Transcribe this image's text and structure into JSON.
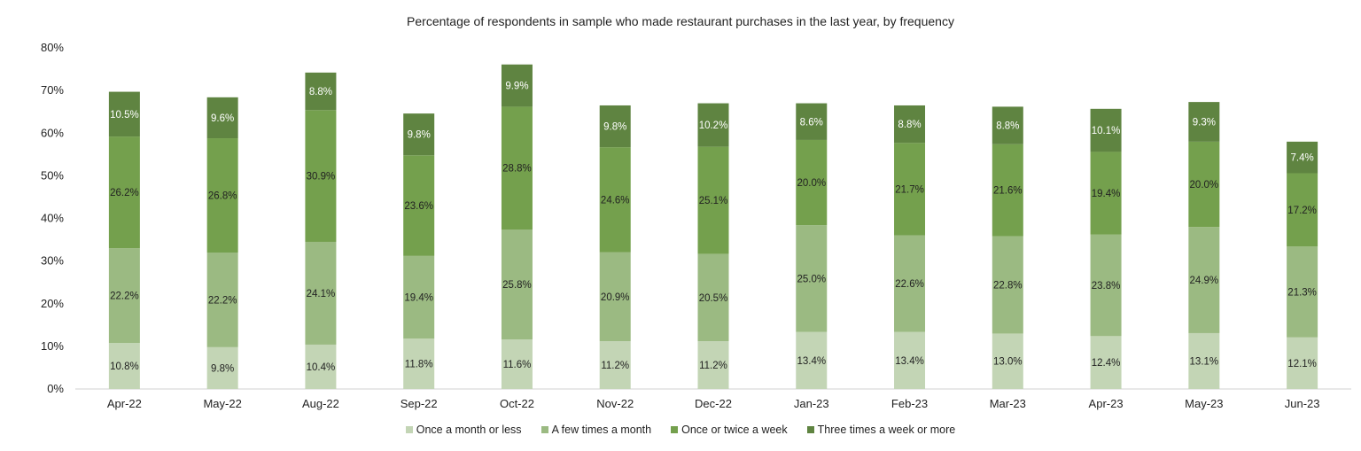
{
  "chart_data": {
    "type": "bar",
    "stacked": true,
    "title": "Percentage of respondents in sample who made restaurant purchases in the last year, by frequency",
    "categories": [
      "Apr-22",
      "May-22",
      "Aug-22",
      "Sep-22",
      "Oct-22",
      "Nov-22",
      "Dec-22",
      "Jan-23",
      "Feb-23",
      "Mar-23",
      "Apr-23",
      "May-23",
      "Jun-23"
    ],
    "ylim": [
      0,
      80
    ],
    "yticks": [
      "0%",
      "10%",
      "20%",
      "30%",
      "40%",
      "50%",
      "60%",
      "70%",
      "80%"
    ],
    "grid": false,
    "legend_position": "bottom",
    "series": [
      {
        "name": "Once a month or less",
        "color": "#c3d5b5",
        "label_color": "#222222",
        "values": [
          10.8,
          9.8,
          10.4,
          11.8,
          11.6,
          11.2,
          11.2,
          13.4,
          13.4,
          13.0,
          12.4,
          13.1,
          12.1
        ]
      },
      {
        "name": "A few times a month",
        "color": "#9bba82",
        "label_color": "#222222",
        "values": [
          22.2,
          22.2,
          24.1,
          19.4,
          25.8,
          20.9,
          20.5,
          25.0,
          22.6,
          22.8,
          23.8,
          24.9,
          21.3
        ]
      },
      {
        "name": "Once or twice a week",
        "color": "#74a04d",
        "label_color": "#222222",
        "values": [
          26.2,
          26.8,
          30.9,
          23.6,
          28.8,
          24.6,
          25.1,
          20.0,
          21.7,
          21.6,
          19.4,
          20.0,
          17.2
        ]
      },
      {
        "name": "Three times a week or more",
        "color": "#5f8441",
        "label_color": "#ffffff",
        "values": [
          10.5,
          9.6,
          8.8,
          9.8,
          9.9,
          9.8,
          10.2,
          8.6,
          8.8,
          8.8,
          10.1,
          9.3,
          7.4
        ]
      }
    ]
  }
}
